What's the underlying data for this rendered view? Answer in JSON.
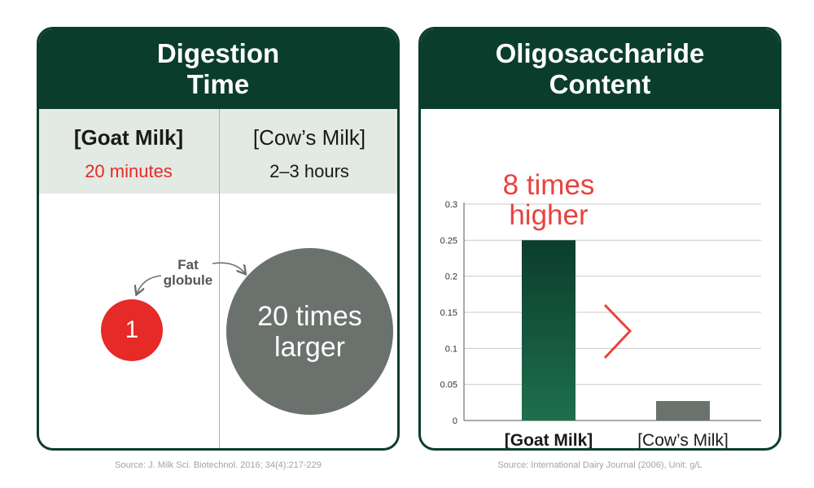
{
  "left_card": {
    "title_line1": "Digestion",
    "title_line2": "Time",
    "goat": {
      "name": "[Goat Milk]",
      "time": "20 minutes"
    },
    "cow": {
      "name": "[Cow’s Milk]",
      "time": "2–3 hours"
    },
    "fat_label_line1": "Fat",
    "fat_label_line2": "globule",
    "small_circle_value": "1",
    "large_circle_line1": "20 times",
    "large_circle_line2": "larger",
    "source": "Source: J. Milk Sci. Biotechnol. 2016; 34(4):217-229"
  },
  "right_card": {
    "title_line1": "Oligosaccharide",
    "title_line2": "Content",
    "source": "Source: International Dairy Journal (2006), Unit: g/L"
  },
  "chart_data": {
    "type": "bar",
    "title": "Oligosaccharide Content",
    "categories": [
      "[Goat Milk]",
      "[Cow’s Milk]"
    ],
    "values": [
      0.25,
      0.027
    ],
    "ylim": [
      0,
      0.3
    ],
    "yticks": [
      "0",
      "0.05",
      "0.1",
      "0.15",
      "0.2",
      "0.25",
      "0.3"
    ],
    "ytick_values": [
      0,
      0.05,
      0.1,
      0.15,
      0.2,
      0.25,
      0.3
    ],
    "grid": true,
    "annotation_line1": "8 times",
    "annotation_line2": "higher",
    "comparison_symbol": ">",
    "colors": {
      "goat_top": "#0b3d2c",
      "goat_bottom": "#1e6f4e",
      "cow": "#6b726d",
      "accent": "#e8433f"
    }
  },
  "colors": {
    "header": "#0b3d2c",
    "red": "#e52a27",
    "grey": "#6b726d",
    "band": "#e3e9e3"
  }
}
